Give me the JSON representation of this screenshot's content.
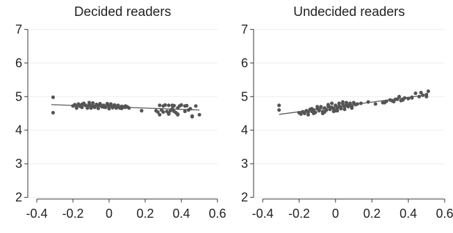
{
  "chart_data": [
    {
      "type": "scatter",
      "title": "Decided readers",
      "xlabel": "",
      "ylabel": "",
      "xlim": [
        -0.45,
        0.6
      ],
      "ylim": [
        1.95,
        7.05
      ],
      "xticks": [
        "-0.4",
        "-0.2",
        "0",
        "0.2",
        "0.4",
        "0.6"
      ],
      "xtick_values": [
        -0.4,
        -0.2,
        0,
        0.2,
        0.4,
        0.6
      ],
      "yticks": [
        "2",
        "3",
        "4",
        "5",
        "6",
        "7"
      ],
      "ytick_values": [
        2,
        3,
        4,
        5,
        6,
        7
      ],
      "grid": "horizontal",
      "legend": "none",
      "point_color": "#555555",
      "line_color": "#555555",
      "fit_line": {
        "x": [
          -0.32,
          0.5
        ],
        "y": [
          4.76,
          4.6
        ]
      },
      "points": {
        "x": [
          -0.31,
          -0.31,
          -0.2,
          -0.19,
          -0.18,
          -0.17,
          -0.16,
          -0.15,
          -0.14,
          -0.13,
          -0.12,
          -0.11,
          -0.1,
          -0.09,
          -0.08,
          -0.07,
          -0.06,
          -0.05,
          -0.04,
          -0.03,
          -0.02,
          -0.01,
          0.0,
          0.01,
          0.02,
          0.03,
          0.04,
          0.05,
          0.06,
          0.07,
          0.08,
          0.09,
          0.1,
          -0.18,
          -0.15,
          -0.12,
          -0.09,
          -0.06,
          -0.03,
          0.0,
          0.03,
          0.06,
          -0.16,
          -0.13,
          -0.1,
          -0.07,
          -0.04,
          -0.01,
          0.02,
          0.05,
          -0.11,
          -0.08,
          -0.05,
          -0.02,
          0.01,
          0.04,
          0.07,
          0.09,
          0.11,
          0.18,
          0.26,
          0.28,
          0.3,
          0.32,
          0.33,
          0.34,
          0.36,
          0.38,
          0.4,
          0.27,
          0.29,
          0.31,
          0.33,
          0.35,
          0.37,
          0.39,
          0.43,
          0.45,
          0.28,
          0.3,
          0.33,
          0.36,
          0.38,
          0.42,
          0.46,
          0.48,
          0.5,
          0.38,
          0.42,
          0.46,
          0.35,
          0.44
        ],
        "y": [
          4.98,
          4.52,
          4.72,
          4.76,
          4.7,
          4.78,
          4.73,
          4.68,
          4.8,
          4.74,
          4.7,
          4.76,
          4.72,
          4.81,
          4.69,
          4.75,
          4.73,
          4.79,
          4.7,
          4.74,
          4.68,
          4.76,
          4.71,
          4.73,
          4.67,
          4.75,
          4.7,
          4.72,
          4.66,
          4.71,
          4.69,
          4.68,
          4.7,
          4.66,
          4.77,
          4.66,
          4.73,
          4.65,
          4.69,
          4.64,
          4.72,
          4.67,
          4.71,
          4.74,
          4.66,
          4.77,
          4.72,
          4.79,
          4.7,
          4.74,
          4.82,
          4.68,
          4.75,
          4.7,
          4.78,
          4.66,
          4.65,
          4.72,
          4.66,
          4.58,
          4.58,
          4.74,
          4.72,
          4.56,
          4.74,
          4.58,
          4.73,
          4.48,
          4.75,
          4.54,
          4.6,
          4.75,
          4.5,
          4.74,
          4.52,
          4.72,
          4.73,
          4.64,
          4.46,
          4.54,
          4.48,
          4.56,
          4.46,
          4.72,
          4.4,
          4.72,
          4.46,
          4.66,
          4.56,
          4.42,
          4.64,
          4.6
        ]
      }
    },
    {
      "type": "scatter",
      "title": "Undecided readers",
      "xlabel": "",
      "ylabel": "",
      "xlim": [
        -0.45,
        0.6
      ],
      "ylim": [
        1.95,
        7.05
      ],
      "xticks": [
        "-0.4",
        "-0.2",
        "0",
        "0.2",
        "0.4",
        "0.6"
      ],
      "xtick_values": [
        -0.4,
        -0.2,
        0,
        0.2,
        0.4,
        0.6
      ],
      "yticks": [
        "2",
        "3",
        "4",
        "5",
        "6",
        "7"
      ],
      "ytick_values": [
        2,
        3,
        4,
        5,
        6,
        7
      ],
      "grid": "horizontal",
      "legend": "none",
      "point_color": "#555555",
      "line_color": "#555555",
      "fit_line": {
        "x": [
          -0.31,
          0.5
        ],
        "y": [
          4.47,
          5.05
        ]
      },
      "points": {
        "x": [
          -0.31,
          -0.31,
          -0.2,
          -0.19,
          -0.18,
          -0.17,
          -0.16,
          -0.15,
          -0.14,
          -0.13,
          -0.12,
          -0.11,
          -0.1,
          -0.09,
          -0.08,
          -0.07,
          -0.06,
          -0.05,
          -0.04,
          -0.03,
          -0.02,
          -0.01,
          0.0,
          0.01,
          0.02,
          0.03,
          0.04,
          0.05,
          0.06,
          0.07,
          0.08,
          0.09,
          0.1,
          0.11,
          0.12,
          -0.15,
          -0.12,
          -0.09,
          -0.06,
          -0.03,
          0.0,
          0.03,
          0.06,
          0.09,
          -0.13,
          -0.1,
          -0.07,
          -0.04,
          -0.01,
          0.02,
          0.05,
          0.08,
          -0.05,
          -0.02,
          0.01,
          0.04,
          0.07,
          0.14,
          0.18,
          0.22,
          0.26,
          0.28,
          0.3,
          0.32,
          0.34,
          0.36,
          0.38,
          0.27,
          0.31,
          0.35,
          0.33,
          0.37,
          0.4,
          0.42,
          0.44,
          0.46,
          0.48,
          0.5,
          0.42,
          0.47,
          0.5,
          0.51
        ],
        "y": [
          4.74,
          4.6,
          4.52,
          4.48,
          4.55,
          4.5,
          4.58,
          4.54,
          4.62,
          4.56,
          4.6,
          4.53,
          4.64,
          4.58,
          4.7,
          4.56,
          4.66,
          4.6,
          4.72,
          4.62,
          4.68,
          4.64,
          4.74,
          4.66,
          4.72,
          4.68,
          4.78,
          4.7,
          4.76,
          4.74,
          4.8,
          4.72,
          4.82,
          4.76,
          4.78,
          4.46,
          4.5,
          4.62,
          4.54,
          4.68,
          4.58,
          4.64,
          4.82,
          4.66,
          4.64,
          4.7,
          4.5,
          4.76,
          4.56,
          4.8,
          4.62,
          4.74,
          4.6,
          4.8,
          4.58,
          4.84,
          4.7,
          4.8,
          4.84,
          4.78,
          4.82,
          4.86,
          4.9,
          4.85,
          4.92,
          4.88,
          4.96,
          4.82,
          4.88,
          5.0,
          4.92,
          4.9,
          4.94,
          4.98,
          5.1,
          5.0,
          5.04,
          5.06,
          4.96,
          5.12,
          5.0,
          5.16
        ]
      }
    }
  ]
}
